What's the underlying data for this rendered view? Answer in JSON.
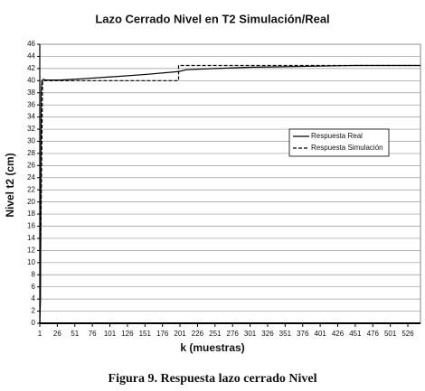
{
  "chart_data": {
    "type": "line",
    "title": "Lazo Cerrado Nivel en T2 Simulación/Real",
    "x_label": "k (muestras)",
    "y_label": "Nivel t2 (cm)",
    "caption": "Figura 9. Respuesta lazo cerrado Nivel",
    "series": [
      {
        "name": "Respuesta Real",
        "color": "#000000",
        "dash": "solid",
        "x": [
          1,
          2,
          3,
          4,
          6,
          10,
          30,
          60,
          100,
          150,
          199,
          210,
          250,
          300,
          350,
          400,
          450,
          500,
          544
        ],
        "values": [
          0,
          4,
          38,
          40,
          40.2,
          40.1,
          40.1,
          40.3,
          40.6,
          41,
          41.5,
          41.8,
          42,
          42.2,
          42.3,
          42.4,
          42.5,
          42.5,
          42.5
        ]
      },
      {
        "name": "Respuesta Simulación",
        "color": "#000000",
        "dash": "dashed",
        "x": [
          1,
          5,
          199,
          199,
          544
        ],
        "values": [
          0,
          40,
          40,
          42.5,
          42.5
        ]
      }
    ],
    "xlim": [
      1,
      544
    ],
    "xticks": [
      1,
      26,
      51,
      76,
      101,
      126,
      151,
      176,
      201,
      226,
      251,
      276,
      301,
      326,
      351,
      376,
      401,
      426,
      451,
      476,
      501,
      526
    ],
    "ylim": [
      0,
      46
    ],
    "yticks": [
      0,
      2,
      4,
      6,
      8,
      10,
      12,
      14,
      16,
      18,
      20,
      22,
      24,
      26,
      28,
      30,
      32,
      34,
      36,
      38,
      40,
      42,
      44,
      46
    ],
    "grid": true,
    "legend": "upper-right"
  }
}
